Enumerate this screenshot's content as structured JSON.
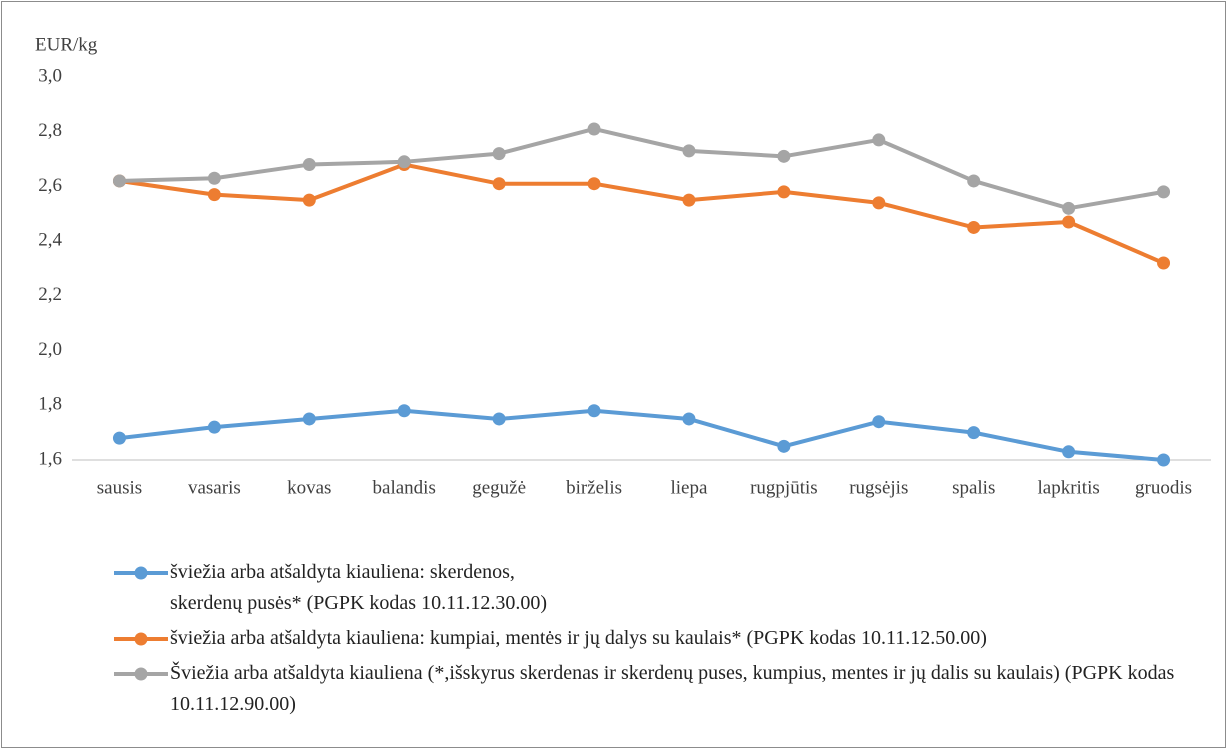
{
  "chart_data": {
    "type": "line",
    "y_label": "EUR/kg",
    "categories": [
      "sausis",
      "vasaris",
      "kovas",
      "balandis",
      "gegužė",
      "birželis",
      "liepa",
      "rugpjūtis",
      "rugsėjis",
      "spalis",
      "lapkritis",
      "gruodis"
    ],
    "series": [
      {
        "name": "šviežia arba atšaldyta kiauliena: skerdenos, skerdenų pusės* (PGPK kodas 10.11.12.30.00)",
        "color": "#5b9bd5",
        "values": [
          1.68,
          1.72,
          1.75,
          1.78,
          1.75,
          1.78,
          1.75,
          1.65,
          1.74,
          1.7,
          1.63,
          1.6
        ]
      },
      {
        "name": "šviežia arba atšaldyta kiauliena: kumpiai, mentės ir jų dalys su kaulais* (PGPK kodas 10.11.12.50.00)",
        "color": "#ed7d31",
        "values": [
          2.62,
          2.57,
          2.55,
          2.68,
          2.61,
          2.61,
          2.55,
          2.58,
          2.54,
          2.45,
          2.47,
          2.32
        ]
      },
      {
        "name": "Šviežia arba atšaldyta kiauliena (*,išskyrus skerdenas ir skerdenų puses, kumpius, mentes ir jų dalis su kaulais)  (PGPK kodas 10.11.12.90.00)",
        "color": "#a5a5a5",
        "values": [
          2.62,
          2.63,
          2.68,
          2.69,
          2.72,
          2.81,
          2.73,
          2.71,
          2.77,
          2.62,
          2.52,
          2.58
        ]
      }
    ],
    "ylim": [
      1.6,
      3.0
    ],
    "yticks": [
      {
        "value": 1.6,
        "label": "1,6"
      },
      {
        "value": 1.8,
        "label": "1,8"
      },
      {
        "value": 2.0,
        "label": "2,0"
      },
      {
        "value": 2.2,
        "label": "2,2"
      },
      {
        "value": 2.4,
        "label": "2,4"
      },
      {
        "value": 2.6,
        "label": "2,6"
      },
      {
        "value": 2.8,
        "label": "2,8"
      },
      {
        "value": 3.0,
        "label": "3,0"
      }
    ],
    "grid": false,
    "legend": "bottom"
  }
}
